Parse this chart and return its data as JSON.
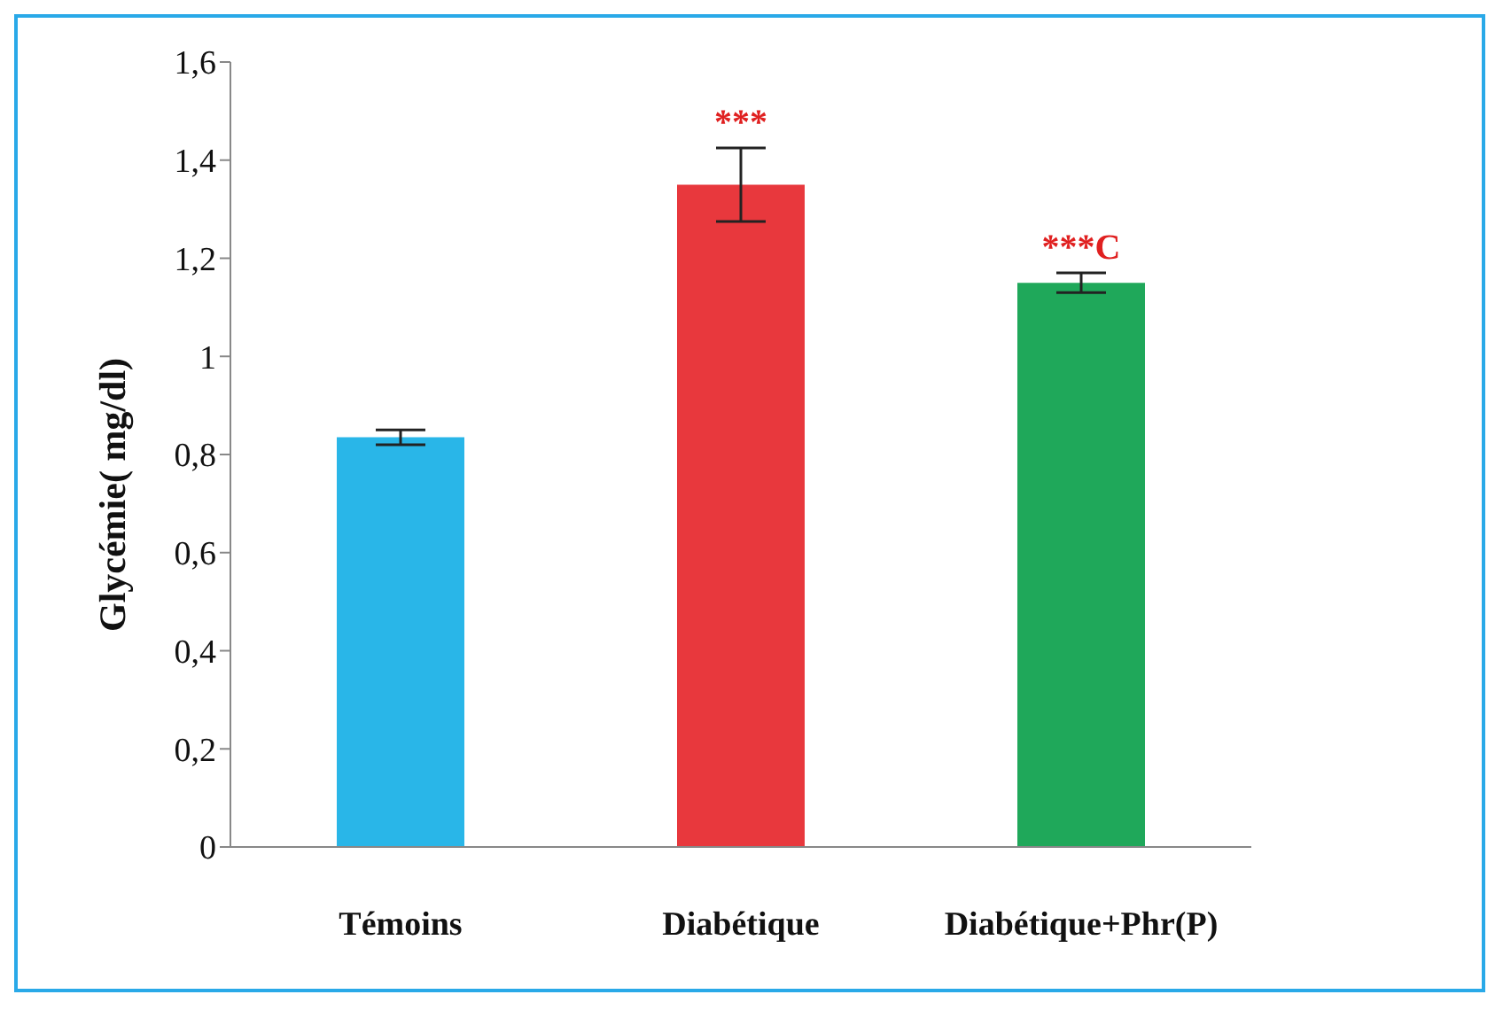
{
  "chart_data": {
    "type": "bar",
    "ylabel": "Glycémie( mg/dl)",
    "categories": [
      "Témoins",
      "Diabétique",
      "Diabétique+Phr(P)"
    ],
    "values": [
      0.835,
      1.35,
      1.15
    ],
    "errors": [
      0.015,
      0.075,
      0.02
    ],
    "colors": [
      "#29b6e8",
      "#e8383d",
      "#1fa85a"
    ],
    "ylim": [
      0,
      1.6
    ],
    "yticks": [
      0,
      {
        "value": 0.2,
        "label": "0,2"
      },
      {
        "value": 0.4,
        "label": "0,4"
      },
      {
        "value": 0.6,
        "label": "0,6"
      },
      {
        "value": 0.8,
        "label": "0,8"
      },
      1,
      {
        "value": 1.2,
        "label": "1,2"
      },
      {
        "value": 1.4,
        "label": "1,4"
      },
      {
        "value": 1.6,
        "label": "1,6"
      }
    ],
    "annotations": [
      {
        "text": "***",
        "x": "Diabétique",
        "y": 1.425
      },
      {
        "text": "***C",
        "x": "Diabétique+Phr(P)",
        "y": 1.17
      }
    ],
    "grid": false,
    "legend": false
  }
}
